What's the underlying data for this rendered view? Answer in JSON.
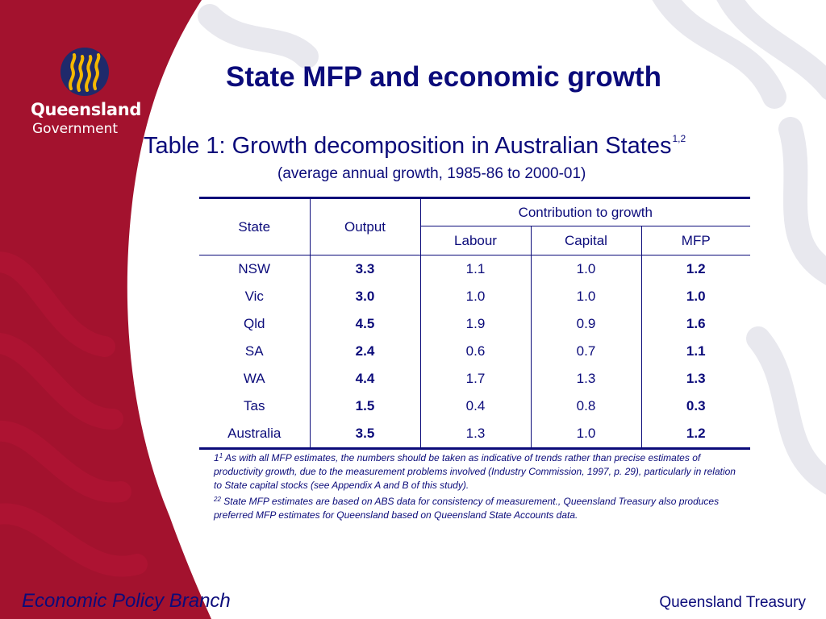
{
  "slide": {
    "title": "State MFP and economic growth",
    "table_title": "Table 1: Growth decomposition in Australian States",
    "table_title_sup": "1,2",
    "table_subtitle": "(average annual growth, 1985-86 to 2000-01)"
  },
  "logo": {
    "name": "Queensland",
    "sub": "Government",
    "icon": "queensland-government-crest"
  },
  "table": {
    "headers": {
      "state": "State",
      "output": "Output",
      "contribution": "Contribution to growth",
      "labour": "Labour",
      "capital": "Capital",
      "mfp": "MFP"
    },
    "rows": [
      {
        "state": "NSW",
        "output": "3.3",
        "labour": "1.1",
        "capital": "1.0",
        "mfp": "1.2"
      },
      {
        "state": "Vic",
        "output": "3.0",
        "labour": "1.0",
        "capital": "1.0",
        "mfp": "1.0"
      },
      {
        "state": "Qld",
        "output": "4.5",
        "labour": "1.9",
        "capital": "0.9",
        "mfp": "1.6"
      },
      {
        "state": "SA",
        "output": "2.4",
        "labour": "0.6",
        "capital": "0.7",
        "mfp": "1.1"
      },
      {
        "state": "WA",
        "output": "4.4",
        "labour": "1.7",
        "capital": "1.3",
        "mfp": "1.3"
      },
      {
        "state": "Tas",
        "output": "1.5",
        "labour": "0.4",
        "capital": "0.8",
        "mfp": "0.3"
      },
      {
        "state": "Australia",
        "output": "3.5",
        "labour": "1.3",
        "capital": "1.0",
        "mfp": "1.2"
      }
    ]
  },
  "footnotes": {
    "note1_prefix": "1",
    "note1_sup": "1",
    "note1_text": " As with all MFP estimates, the numbers should be taken as indicative of trends rather than precise estimates of productivity growth, due to the measurement problems involved (Industry Commission, 1997, p. 29), particularly in relation to State capital stocks (see Appendix A and B of this study).",
    "note2_sup": "22",
    "note2_text": " State MFP estimates are based on ABS data for consistency of measurement., Queensland Treasury also produces preferred MFP estimates for Queensland based on Queensland State Accounts data."
  },
  "footer": {
    "left": "Economic Policy Branch",
    "right": "Queensland Treasury"
  },
  "colors": {
    "maroon": "#a3122e",
    "navy": "#0b0b7a",
    "logo_gold": "#f5b800",
    "logo_blue": "#1f2a6b"
  }
}
